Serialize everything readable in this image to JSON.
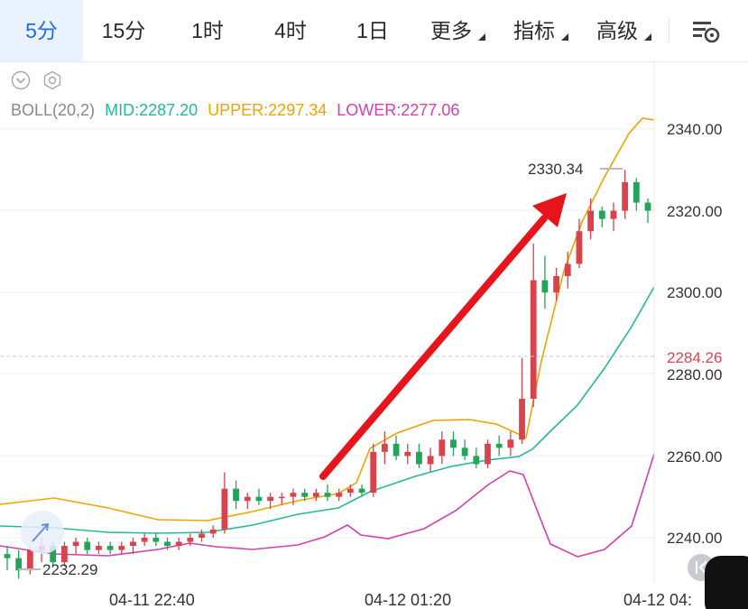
{
  "tabs": [
    {
      "label": "5分",
      "active": true
    },
    {
      "label": "15分"
    },
    {
      "label": "1时"
    },
    {
      "label": "4时"
    },
    {
      "label": "1日"
    },
    {
      "label": "更多",
      "dropdown": true
    },
    {
      "label": "指标",
      "dropdown": true
    },
    {
      "label": "高级",
      "dropdown": true
    }
  ],
  "indicator": {
    "name": "BOLL(20,2)",
    "mid": "MID:2287.20",
    "upper": "UPPER:2297.34",
    "lower": "LOWER:2277.06",
    "colors": {
      "name": "#888888",
      "mid": "#26b79a",
      "upper": "#f0a400",
      "lower": "#d43fb0"
    }
  },
  "colors": {
    "up": "#d9434e",
    "down": "#22a558",
    "accent": "#1e6fe0",
    "arrow": "#e8141c"
  },
  "y_axis": {
    "ticks": [
      "2340.00",
      "2320.00",
      "2300.00",
      "2280.00",
      "2260.00",
      "2240.00"
    ],
    "current_price": "2284.26"
  },
  "x_axis": {
    "labels": [
      "04-11 22:40",
      "04-12 01:20",
      "04-12 04:"
    ]
  },
  "annotations": {
    "high": "2330.34",
    "low": "2232.29"
  },
  "chart_data": {
    "type": "candlestick",
    "ylim": [
      2227,
      2353
    ],
    "ohlc": [
      [
        2236,
        2238,
        2232,
        2235
      ],
      [
        2235,
        2237,
        2230,
        2232
      ],
      [
        2232,
        2238,
        2231,
        2237
      ],
      [
        2237,
        2240,
        2234,
        2238
      ],
      [
        2238,
        2239,
        2233,
        2234
      ],
      [
        2234,
        2239,
        2233,
        2238
      ],
      [
        2238,
        2240,
        2236,
        2239
      ],
      [
        2239,
        2240,
        2236,
        2237
      ],
      [
        2237,
        2239,
        2236,
        2238
      ],
      [
        2238,
        2239,
        2236,
        2237
      ],
      [
        2237,
        2239,
        2236,
        2238
      ],
      [
        2238,
        2240,
        2236,
        2239
      ],
      [
        2239,
        2241,
        2238,
        2240
      ],
      [
        2240,
        2241,
        2238,
        2239
      ],
      [
        2239,
        2240,
        2237,
        2238
      ],
      [
        2238,
        2240,
        2237,
        2239
      ],
      [
        2239,
        2241,
        2238,
        2240
      ],
      [
        2240,
        2242,
        2239,
        2241
      ],
      [
        2241,
        2243,
        2240,
        2242
      ],
      [
        2242,
        2256,
        2241,
        2252
      ],
      [
        2252,
        2254,
        2247,
        2249
      ],
      [
        2249,
        2251,
        2247,
        2250
      ],
      [
        2250,
        2252,
        2248,
        2249
      ],
      [
        2249,
        2251,
        2247,
        2250
      ],
      [
        2250,
        2251,
        2248,
        2250
      ],
      [
        2250,
        2252,
        2248,
        2251
      ],
      [
        2251,
        2252,
        2249,
        2250
      ],
      [
        2250,
        2252,
        2249,
        2251
      ],
      [
        2251,
        2253,
        2249,
        2250
      ],
      [
        2250,
        2252,
        2249,
        2251
      ],
      [
        2251,
        2253,
        2250,
        2252
      ],
      [
        2252,
        2253,
        2250,
        2251
      ],
      [
        2251,
        2263,
        2250,
        2261
      ],
      [
        2261,
        2266,
        2258,
        2263
      ],
      [
        2263,
        2265,
        2259,
        2260
      ],
      [
        2260,
        2263,
        2258,
        2261
      ],
      [
        2261,
        2263,
        2257,
        2258
      ],
      [
        2258,
        2262,
        2256,
        2260
      ],
      [
        2260,
        2266,
        2258,
        2264
      ],
      [
        2264,
        2266,
        2260,
        2262
      ],
      [
        2262,
        2264,
        2259,
        2260
      ],
      [
        2260,
        2262,
        2257,
        2258
      ],
      [
        2258,
        2264,
        2257,
        2263
      ],
      [
        2263,
        2265,
        2260,
        2262
      ],
      [
        2262,
        2266,
        2260,
        2264
      ],
      [
        2264,
        2284,
        2263,
        2274
      ],
      [
        2274,
        2312,
        2272,
        2303
      ],
      [
        2303,
        2309,
        2296,
        2300
      ],
      [
        2300,
        2306,
        2298,
        2304
      ],
      [
        2304,
        2310,
        2301,
        2307
      ],
      [
        2307,
        2318,
        2306,
        2315
      ],
      [
        2315,
        2323,
        2313,
        2320
      ],
      [
        2320,
        2321,
        2316,
        2318
      ],
      [
        2318,
        2322,
        2315,
        2320
      ],
      [
        2320,
        2330,
        2318,
        2327
      ],
      [
        2327,
        2328,
        2320,
        2322
      ],
      [
        2322,
        2323,
        2317,
        2320
      ]
    ]
  }
}
